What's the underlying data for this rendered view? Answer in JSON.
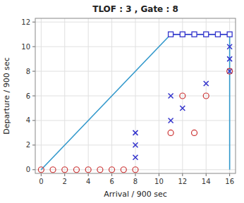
{
  "chart_data": {
    "type": "scatter",
    "title": "TLOF : 3 , Gate : 8",
    "xlabel": "Arrival / 900 sec",
    "ylabel": "Departure / 900 sec",
    "xlim": [
      -0.5,
      16.5
    ],
    "ylim": [
      -0.3,
      12.3
    ],
    "xticks": [
      0,
      2,
      4,
      6,
      8,
      10,
      12,
      14,
      16
    ],
    "yticks": [
      0,
      2,
      4,
      6,
      8,
      10,
      12
    ],
    "grid": true,
    "series": [
      {
        "type": "line",
        "color": "#3399cc",
        "x": [
          0,
          11,
          16,
          16
        ],
        "values": [
          0,
          11,
          11,
          0
        ]
      },
      {
        "type": "line",
        "marker": "square",
        "color": "#3333cc",
        "x": [
          11,
          12,
          13,
          14,
          15,
          16
        ],
        "values": [
          11,
          11,
          11,
          11,
          11,
          11
        ]
      },
      {
        "type": "scatter",
        "marker": "x",
        "color": "#3333cc",
        "x": [
          8,
          8,
          8,
          11,
          11,
          12,
          14,
          16,
          16,
          16
        ],
        "values": [
          1,
          2,
          3,
          4,
          6,
          5,
          7,
          8,
          9,
          10
        ]
      },
      {
        "type": "scatter",
        "marker": "circle",
        "color": "#cc3333",
        "x": [
          0,
          1,
          2,
          3,
          4,
          5,
          6,
          7,
          8,
          11,
          12,
          13,
          14,
          16
        ],
        "values": [
          0,
          0,
          0,
          0,
          0,
          0,
          0,
          0,
          0,
          3,
          6,
          3,
          6,
          8
        ]
      }
    ]
  }
}
